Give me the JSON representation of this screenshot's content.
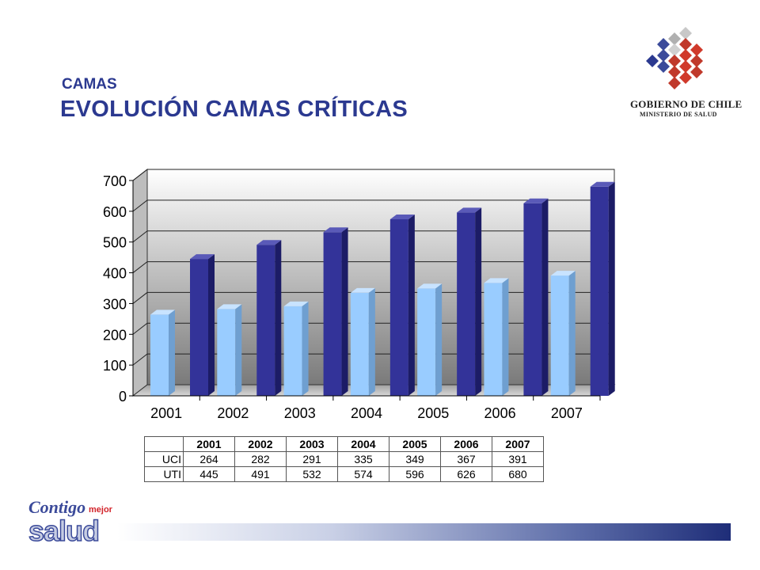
{
  "header": {
    "subtitle": "CAMAS",
    "title": "EVOLUCIÓN  CAMAS CRÍTICAS"
  },
  "logo": {
    "line1": "GOBIERNO DE CHILE",
    "line2": "MINISTERIO DE SALUD"
  },
  "brand": {
    "contigo": "Contigo",
    "mejor": "mejor",
    "salud": "salud"
  },
  "colors": {
    "accent": "#2b3990",
    "uci": "#99ccff",
    "uti": "#333399"
  },
  "chart_data": {
    "type": "bar",
    "categories": [
      "2001",
      "2002",
      "2003",
      "2004",
      "2005",
      "2006",
      "2007"
    ],
    "series": [
      {
        "name": "UCI",
        "values": [
          264,
          282,
          291,
          335,
          349,
          367,
          391
        ]
      },
      {
        "name": "UTI",
        "values": [
          445,
          491,
          532,
          574,
          596,
          626,
          680
        ]
      }
    ],
    "ylim": [
      0,
      700
    ],
    "yticks": [
      "0",
      "100",
      "200",
      "300",
      "400",
      "500",
      "600",
      "700"
    ],
    "grid": true,
    "legend": "right"
  },
  "table": {
    "headers": [
      "2001",
      "2002",
      "2003",
      "2004",
      "2005",
      "2006",
      "2007"
    ],
    "rows": [
      {
        "label": "UCI",
        "values": [
          "264",
          "282",
          "291",
          "335",
          "349",
          "367",
          "391"
        ]
      },
      {
        "label": "UTI",
        "values": [
          "445",
          "491",
          "532",
          "574",
          "596",
          "626",
          "680"
        ]
      }
    ]
  }
}
